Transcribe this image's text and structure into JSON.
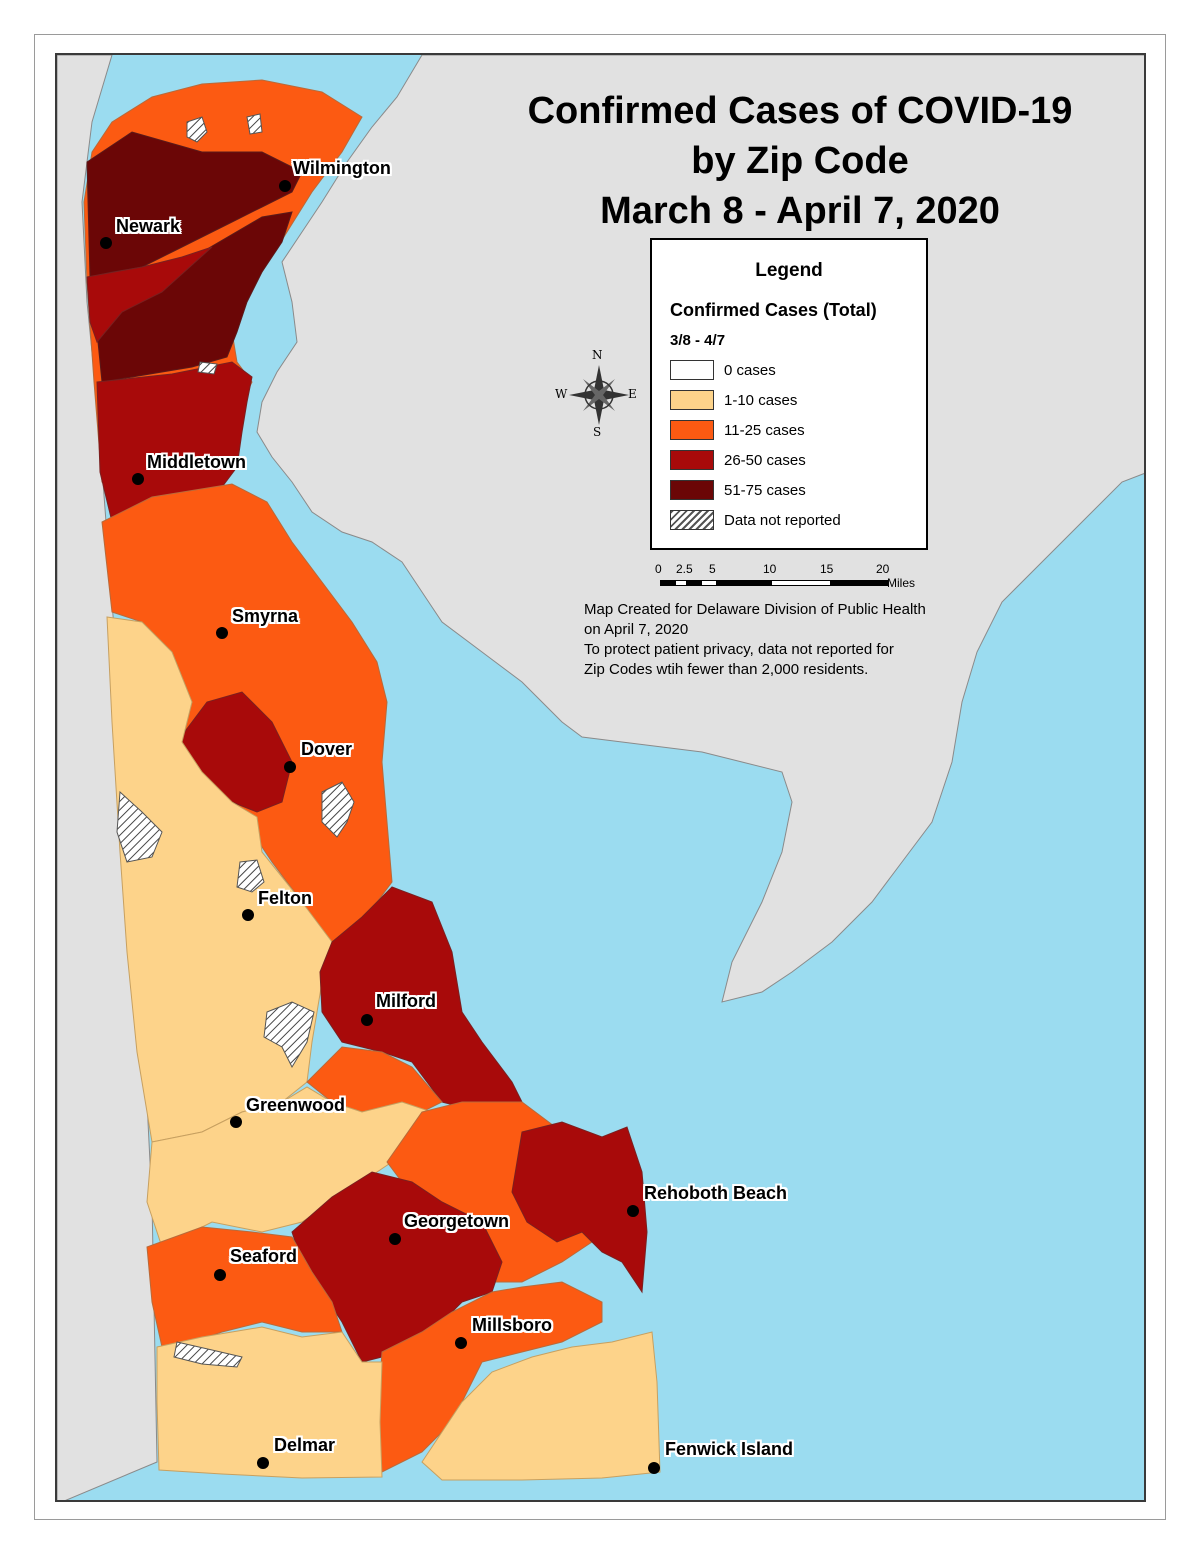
{
  "title": {
    "line1": "Confirmed Cases of COVID-19",
    "line2": "by Zip Code",
    "line3": "March 8 - April 7, 2020"
  },
  "legend": {
    "heading": "Legend",
    "subtitle": "Confirmed Cases (Total)",
    "date_range": "3/8 - 4/7",
    "items": [
      {
        "label": "0 cases",
        "color": "#ffffff"
      },
      {
        "label": "1-10 cases",
        "color": "#fdd38a"
      },
      {
        "label": "11-25 cases",
        "color": "#fc5a12"
      },
      {
        "label": "26-50 cases",
        "color": "#a80a0a"
      },
      {
        "label": "51-75 cases",
        "color": "#6b0606"
      },
      {
        "label": "Data not reported",
        "color": "hatch"
      }
    ]
  },
  "scale_bar": {
    "ticks": [
      "0",
      "2.5",
      "5",
      "10",
      "15",
      "20"
    ],
    "unit": "Miles"
  },
  "compass": {
    "n": "N",
    "s": "S",
    "e": "E",
    "w": "W"
  },
  "notes": {
    "line1": "Map Created for Delaware Division of Public Health",
    "line2": "on April 7, 2020",
    "line3": "To protect patient privacy, data not reported for",
    "line4": "Zip Codes wtih fewer than 2,000 residents."
  },
  "cities": [
    {
      "name": "Wilmington"
    },
    {
      "name": "Newark"
    },
    {
      "name": "Middletown"
    },
    {
      "name": "Smyrna"
    },
    {
      "name": "Dover"
    },
    {
      "name": "Felton"
    },
    {
      "name": "Milford"
    },
    {
      "name": "Greenwood"
    },
    {
      "name": "Rehoboth Beach"
    },
    {
      "name": "Georgetown"
    },
    {
      "name": "Seaford"
    },
    {
      "name": "Millsboro"
    },
    {
      "name": "Delmar"
    },
    {
      "name": "Fenwick Island"
    }
  ],
  "colors": {
    "water": "#9bdcf0",
    "land_other": "#e1e1e1",
    "c0": "#ffffff",
    "c1_10": "#fdd38a",
    "c11_25": "#fc5a12",
    "c26_50": "#a80a0a",
    "c51_75": "#6b0606"
  }
}
